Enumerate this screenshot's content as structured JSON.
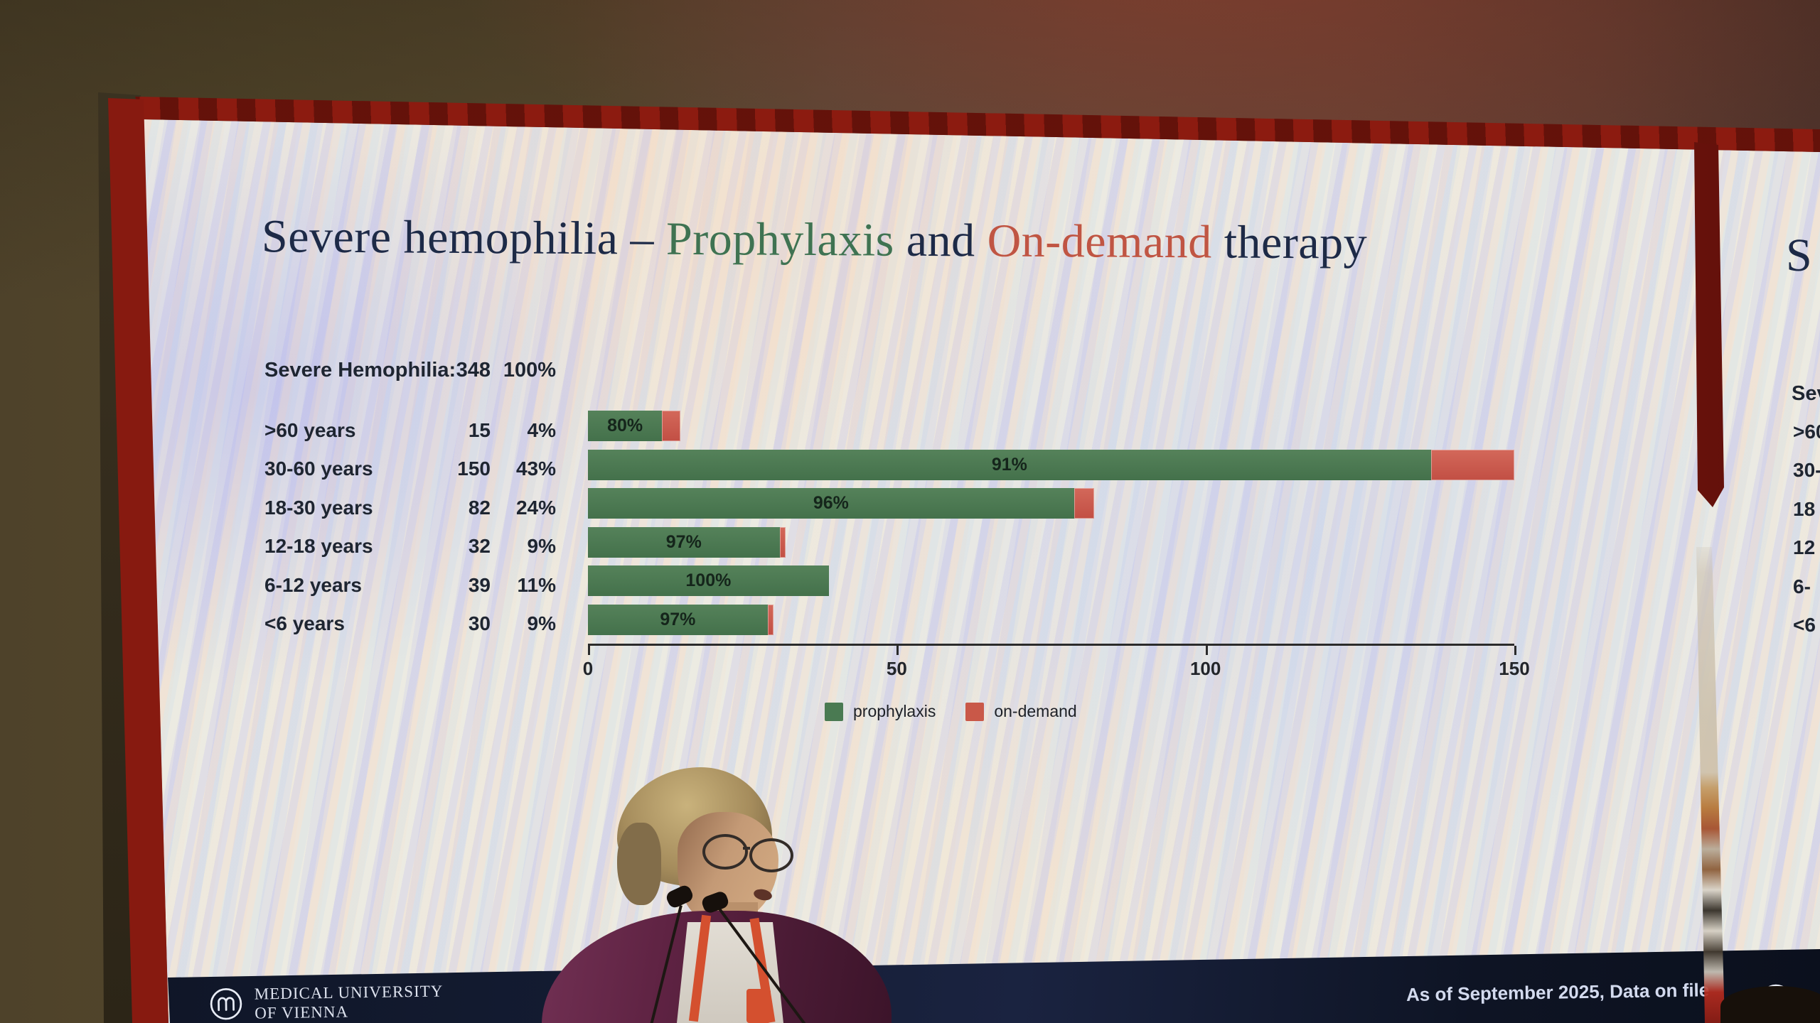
{
  "slide": {
    "title": {
      "part1": "Severe hemophilia – ",
      "highlight_green": "Prophylaxis",
      "part2": " and ",
      "highlight_red": "On-demand",
      "part3": " therapy"
    },
    "footer": {
      "org_name": "MEDICAL UNIVERSITY\nOF VIENNA",
      "note": "As of September 2025, Data on file"
    },
    "fragment_second_screen": {
      "title_start": "S",
      "header_start": "Sev",
      "row_starts": [
        ">60",
        "30-",
        "18",
        "12",
        "6-",
        "<6"
      ]
    }
  },
  "chart_data": {
    "type": "bar",
    "orientation": "horizontal",
    "stacked": true,
    "title": "Severe hemophilia – Prophylaxis and On-demand therapy",
    "table": {
      "header_label": "Severe Hemophilia:",
      "header_n": "348",
      "header_pct": "100%",
      "rows": [
        {
          "label": ">60 years",
          "n": 15,
          "pct_of_total": "4%"
        },
        {
          "label": "30-60 years",
          "n": 150,
          "pct_of_total": "43%"
        },
        {
          "label": "18-30 years",
          "n": 82,
          "pct_of_total": "24%"
        },
        {
          "label": "12-18 years",
          "n": 32,
          "pct_of_total": "9%"
        },
        {
          "label": "6-12 years",
          "n": 39,
          "pct_of_total": "11%"
        },
        {
          "label": "<6 years",
          "n": 30,
          "pct_of_total": "9%"
        }
      ]
    },
    "categories": [
      ">60 years",
      "30-60 years",
      "18-30 years",
      "12-18 years",
      "6-12 years",
      "<6 years"
    ],
    "series": [
      {
        "name": "prophylaxis",
        "color": "#4a7a52",
        "pct_within_group": [
          80,
          91,
          96,
          97,
          100,
          97
        ]
      },
      {
        "name": "on-demand",
        "color": "#c95848",
        "pct_within_group": [
          20,
          9,
          4,
          3,
          0,
          3
        ]
      }
    ],
    "bar_labels": [
      "80%",
      "91%",
      "96%",
      "97%",
      "100%",
      "97%"
    ],
    "xlim": [
      0,
      150
    ],
    "xticks": [
      0,
      50,
      100,
      150
    ],
    "legend": [
      "prophylaxis",
      "on-demand"
    ],
    "legend_position": "bottom",
    "grid": false
  }
}
